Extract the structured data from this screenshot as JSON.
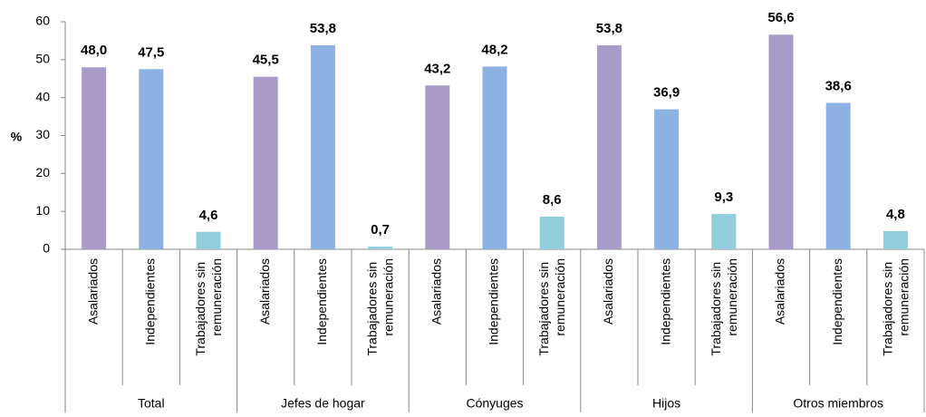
{
  "chart_data": {
    "type": "bar",
    "ylabel": "%",
    "categories": [
      "Total",
      "Jefes de hogar",
      "Cónyuges",
      "Hijos",
      "Otros miembros"
    ],
    "series": [
      {
        "name": "Asalariados",
        "color": "#a99bc8",
        "values": [
          48.0,
          45.5,
          43.2,
          53.8,
          56.6
        ],
        "value_labels": [
          "48,0",
          "45,5",
          "43,2",
          "53,8",
          "56,6"
        ]
      },
      {
        "name": "Independientes",
        "color": "#8eb1e3",
        "values": [
          47.5,
          53.8,
          48.2,
          36.9,
          38.6
        ],
        "value_labels": [
          "47,5",
          "53,8",
          "48,2",
          "36,9",
          "38,6"
        ]
      },
      {
        "name": "Trabajadores sin remuneración",
        "color": "#92cddc",
        "values": [
          4.6,
          0.7,
          8.6,
          9.3,
          4.8
        ],
        "value_labels": [
          "4,6",
          "0,7",
          "8,6",
          "9,3",
          "4,8"
        ]
      }
    ],
    "ylim": [
      0,
      60
    ],
    "yticks": [
      0,
      10,
      20,
      30,
      40,
      50,
      60
    ]
  }
}
